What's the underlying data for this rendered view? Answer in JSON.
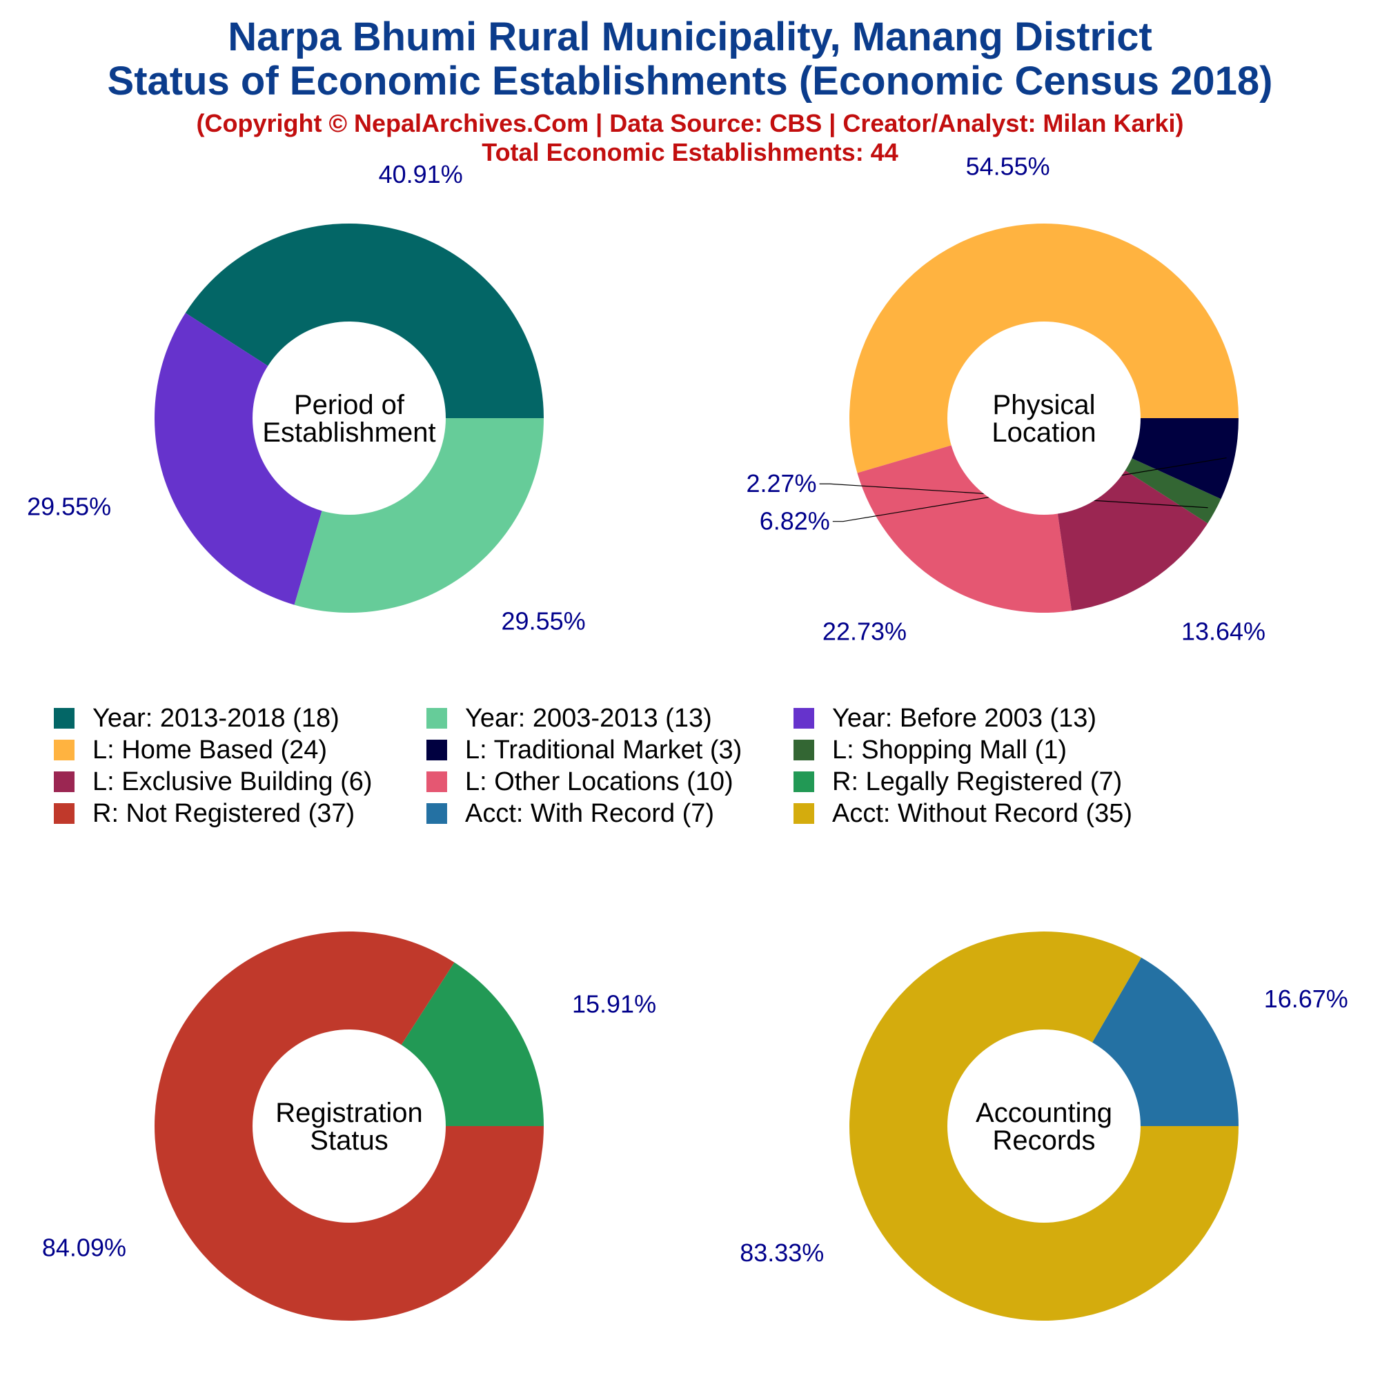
{
  "header": {
    "title_line1": "Narpa Bhumi Rural Municipality, Manang District",
    "title_line2": "Status of Economic Establishments (Economic Census 2018)",
    "subtitle_line1": "(Copyright © NepalArchives.Com | Data Source: CBS | Creator/Analyst: Milan Karki)",
    "subtitle_line2": "Total Economic Establishments: 44"
  },
  "chart_data": [
    {
      "type": "pie",
      "donut": true,
      "center_label": [
        "Period of",
        "Establishment"
      ],
      "slices": [
        {
          "label": "Year: 2013-2018",
          "value": 18,
          "percent_label": "40.91%",
          "color": "#036666"
        },
        {
          "label": "Year: Before 2003",
          "value": 13,
          "percent_label": "29.55%",
          "color": "#6633cc"
        },
        {
          "label": "Year: 2003-2013",
          "value": 13,
          "percent_label": "29.55%",
          "color": "#66cc99"
        }
      ]
    },
    {
      "type": "pie",
      "donut": true,
      "center_label": [
        "Physical",
        "Location"
      ],
      "slices": [
        {
          "label": "L: Home Based",
          "value": 24,
          "percent_label": "54.55%",
          "color": "#ffb340"
        },
        {
          "label": "L: Other Locations",
          "value": 10,
          "percent_label": "22.73%",
          "color": "#e55772"
        },
        {
          "label": "L: Exclusive Building",
          "value": 6,
          "percent_label": "13.64%",
          "color": "#9b2652"
        },
        {
          "label": "L: Shopping Mall",
          "value": 1,
          "percent_label": "2.27%",
          "color": "#336633"
        },
        {
          "label": "L: Traditional Market",
          "value": 3,
          "percent_label": "6.82%",
          "color": "#000040"
        }
      ]
    },
    {
      "type": "pie",
      "donut": true,
      "center_label": [
        "Registration",
        "Status"
      ],
      "slices": [
        {
          "label": "R: Legally Registered",
          "value": 7,
          "percent_label": "15.91%",
          "color": "#229955"
        },
        {
          "label": "R: Not Registered",
          "value": 37,
          "percent_label": "84.09%",
          "color": "#c0392b"
        }
      ]
    },
    {
      "type": "pie",
      "donut": true,
      "center_label": [
        "Accounting",
        "Records"
      ],
      "slices": [
        {
          "label": "Acct: With Record",
          "value": 7,
          "percent_label": "16.67%",
          "color": "#2471a3"
        },
        {
          "label": "Acct: Without Record",
          "value": 35,
          "percent_label": "83.33%",
          "color": "#d4ac0d"
        }
      ]
    }
  ],
  "legend": [
    [
      {
        "label": "Year: 2013-2018 (18)",
        "color": "#036666"
      },
      {
        "label": "Year: 2003-2013 (13)",
        "color": "#66cc99"
      },
      {
        "label": "Year: Before 2003 (13)",
        "color": "#6633cc"
      }
    ],
    [
      {
        "label": "L: Home Based (24)",
        "color": "#ffb340"
      },
      {
        "label": "L: Traditional Market (3)",
        "color": "#000040"
      },
      {
        "label": "L: Shopping Mall (1)",
        "color": "#336633"
      }
    ],
    [
      {
        "label": "L: Exclusive Building (6)",
        "color": "#9b2652"
      },
      {
        "label": "L: Other Locations (10)",
        "color": "#e55772"
      },
      {
        "label": "R: Legally Registered (7)",
        "color": "#229955"
      }
    ],
    [
      {
        "label": "R: Not Registered (37)",
        "color": "#c0392b"
      },
      {
        "label": "Acct: With Record (7)",
        "color": "#2471a3"
      },
      {
        "label": "Acct: Without Record (35)",
        "color": "#d4ac0d"
      }
    ]
  ]
}
